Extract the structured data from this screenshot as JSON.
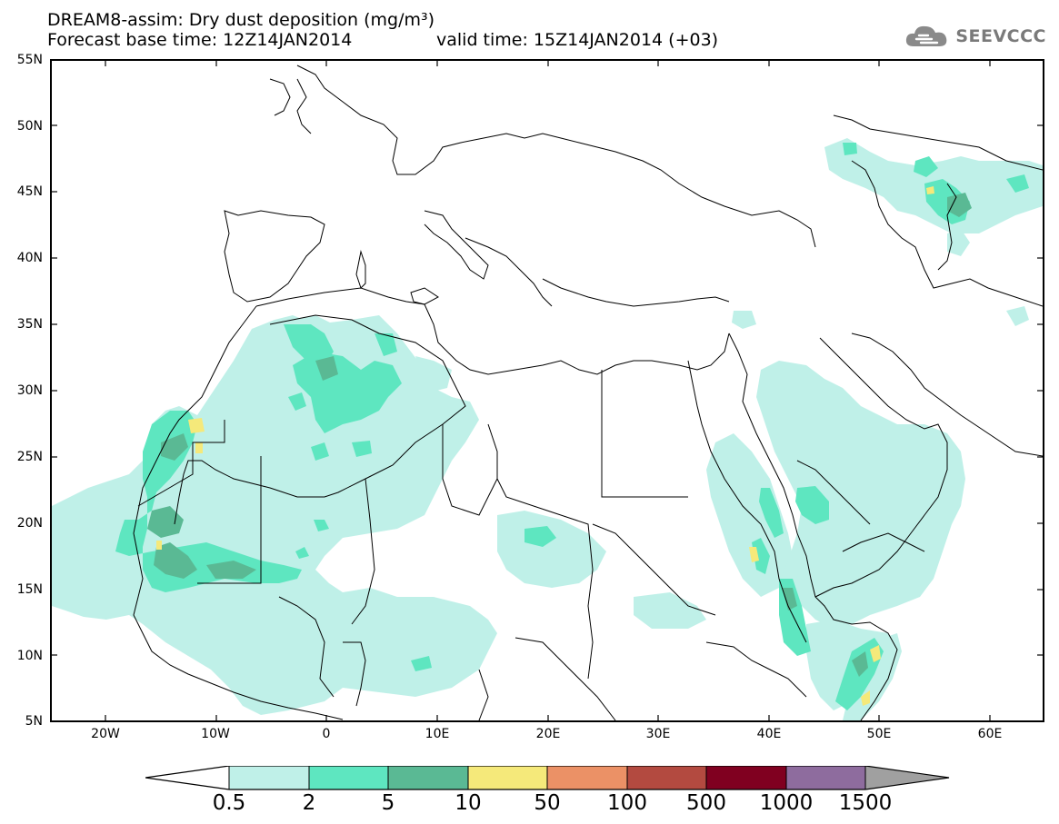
{
  "title": {
    "line1": "DREAM8-assim: Dry dust deposition (mg/m³)",
    "line2_base": "Forecast base time: 12Z14JAN2014",
    "line2_valid": "valid time: 15Z14JAN2014 (+03)"
  },
  "logo": {
    "text": "SEEVCCC",
    "icon": "cloud-icon"
  },
  "axes": {
    "lat_labels": [
      "55N",
      "50N",
      "45N",
      "40N",
      "35N",
      "30N",
      "25N",
      "20N",
      "15N",
      "10N",
      "5N"
    ],
    "lon_labels": [
      "20W",
      "10W",
      "0",
      "10E",
      "20E",
      "30E",
      "40E",
      "50E",
      "60E"
    ]
  },
  "legend": {
    "labels": [
      "0.5",
      "2",
      "5",
      "10",
      "50",
      "100",
      "500",
      "1000",
      "1500"
    ],
    "colors": [
      "#ffffff",
      "#bff0e8",
      "#5ee6c0",
      "#5ab994",
      "#f5e97a",
      "#eb9166",
      "#b34a40",
      "#800020",
      "#8e6c9e",
      "#a0a0a0"
    ]
  },
  "colors": {
    "c1": "#bff0e8",
    "c2": "#5ee6c0",
    "c3": "#5ab994",
    "c4": "#f5e97a"
  }
}
